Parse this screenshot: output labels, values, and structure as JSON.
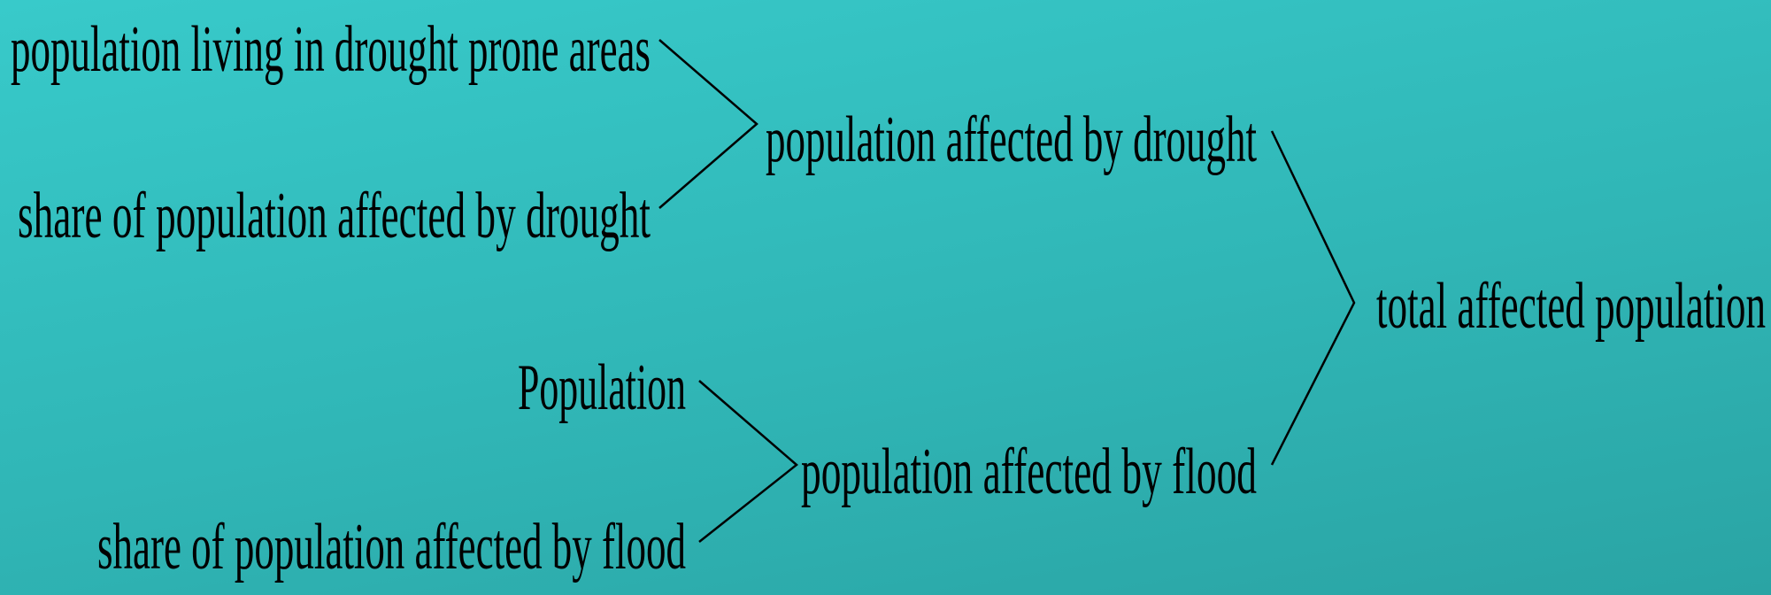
{
  "nodes": [
    {
      "label": "population living in drought prone areas"
    },
    {
      "label": "share of population affected by drought"
    },
    {
      "label": "population affected by drought"
    },
    {
      "label": "Population"
    },
    {
      "label": "share of population affected by flood"
    },
    {
      "label": "population affected by flood"
    },
    {
      "label": "total affected population"
    }
  ]
}
